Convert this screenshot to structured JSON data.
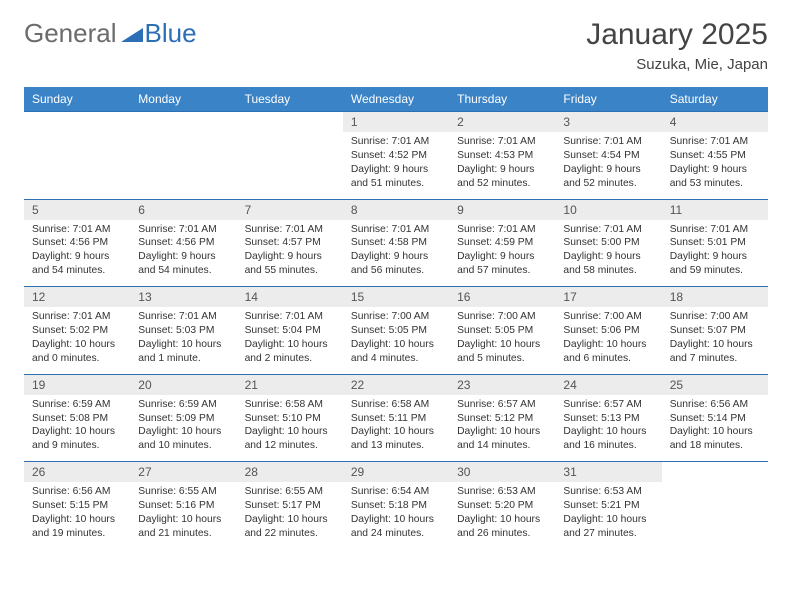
{
  "logo": {
    "general": "General",
    "blue": "Blue"
  },
  "title": "January 2025",
  "location": "Suzuka, Mie, Japan",
  "colors": {
    "header_bg": "#3a83c6",
    "header_text": "#ffffff",
    "row_border": "#2d6fb5",
    "daynum_bg": "#ececec",
    "logo_gray": "#6b6b6b",
    "logo_blue": "#2d6fb5"
  },
  "daysOfWeek": [
    "Sunday",
    "Monday",
    "Tuesday",
    "Wednesday",
    "Thursday",
    "Friday",
    "Saturday"
  ],
  "weeks": [
    [
      {
        "n": "",
        "sr": "",
        "ss": "",
        "dl": ""
      },
      {
        "n": "",
        "sr": "",
        "ss": "",
        "dl": ""
      },
      {
        "n": "",
        "sr": "",
        "ss": "",
        "dl": ""
      },
      {
        "n": "1",
        "sr": "Sunrise: 7:01 AM",
        "ss": "Sunset: 4:52 PM",
        "dl": "Daylight: 9 hours and 51 minutes."
      },
      {
        "n": "2",
        "sr": "Sunrise: 7:01 AM",
        "ss": "Sunset: 4:53 PM",
        "dl": "Daylight: 9 hours and 52 minutes."
      },
      {
        "n": "3",
        "sr": "Sunrise: 7:01 AM",
        "ss": "Sunset: 4:54 PM",
        "dl": "Daylight: 9 hours and 52 minutes."
      },
      {
        "n": "4",
        "sr": "Sunrise: 7:01 AM",
        "ss": "Sunset: 4:55 PM",
        "dl": "Daylight: 9 hours and 53 minutes."
      }
    ],
    [
      {
        "n": "5",
        "sr": "Sunrise: 7:01 AM",
        "ss": "Sunset: 4:56 PM",
        "dl": "Daylight: 9 hours and 54 minutes."
      },
      {
        "n": "6",
        "sr": "Sunrise: 7:01 AM",
        "ss": "Sunset: 4:56 PM",
        "dl": "Daylight: 9 hours and 54 minutes."
      },
      {
        "n": "7",
        "sr": "Sunrise: 7:01 AM",
        "ss": "Sunset: 4:57 PM",
        "dl": "Daylight: 9 hours and 55 minutes."
      },
      {
        "n": "8",
        "sr": "Sunrise: 7:01 AM",
        "ss": "Sunset: 4:58 PM",
        "dl": "Daylight: 9 hours and 56 minutes."
      },
      {
        "n": "9",
        "sr": "Sunrise: 7:01 AM",
        "ss": "Sunset: 4:59 PM",
        "dl": "Daylight: 9 hours and 57 minutes."
      },
      {
        "n": "10",
        "sr": "Sunrise: 7:01 AM",
        "ss": "Sunset: 5:00 PM",
        "dl": "Daylight: 9 hours and 58 minutes."
      },
      {
        "n": "11",
        "sr": "Sunrise: 7:01 AM",
        "ss": "Sunset: 5:01 PM",
        "dl": "Daylight: 9 hours and 59 minutes."
      }
    ],
    [
      {
        "n": "12",
        "sr": "Sunrise: 7:01 AM",
        "ss": "Sunset: 5:02 PM",
        "dl": "Daylight: 10 hours and 0 minutes."
      },
      {
        "n": "13",
        "sr": "Sunrise: 7:01 AM",
        "ss": "Sunset: 5:03 PM",
        "dl": "Daylight: 10 hours and 1 minute."
      },
      {
        "n": "14",
        "sr": "Sunrise: 7:01 AM",
        "ss": "Sunset: 5:04 PM",
        "dl": "Daylight: 10 hours and 2 minutes."
      },
      {
        "n": "15",
        "sr": "Sunrise: 7:00 AM",
        "ss": "Sunset: 5:05 PM",
        "dl": "Daylight: 10 hours and 4 minutes."
      },
      {
        "n": "16",
        "sr": "Sunrise: 7:00 AM",
        "ss": "Sunset: 5:05 PM",
        "dl": "Daylight: 10 hours and 5 minutes."
      },
      {
        "n": "17",
        "sr": "Sunrise: 7:00 AM",
        "ss": "Sunset: 5:06 PM",
        "dl": "Daylight: 10 hours and 6 minutes."
      },
      {
        "n": "18",
        "sr": "Sunrise: 7:00 AM",
        "ss": "Sunset: 5:07 PM",
        "dl": "Daylight: 10 hours and 7 minutes."
      }
    ],
    [
      {
        "n": "19",
        "sr": "Sunrise: 6:59 AM",
        "ss": "Sunset: 5:08 PM",
        "dl": "Daylight: 10 hours and 9 minutes."
      },
      {
        "n": "20",
        "sr": "Sunrise: 6:59 AM",
        "ss": "Sunset: 5:09 PM",
        "dl": "Daylight: 10 hours and 10 minutes."
      },
      {
        "n": "21",
        "sr": "Sunrise: 6:58 AM",
        "ss": "Sunset: 5:10 PM",
        "dl": "Daylight: 10 hours and 12 minutes."
      },
      {
        "n": "22",
        "sr": "Sunrise: 6:58 AM",
        "ss": "Sunset: 5:11 PM",
        "dl": "Daylight: 10 hours and 13 minutes."
      },
      {
        "n": "23",
        "sr": "Sunrise: 6:57 AM",
        "ss": "Sunset: 5:12 PM",
        "dl": "Daylight: 10 hours and 14 minutes."
      },
      {
        "n": "24",
        "sr": "Sunrise: 6:57 AM",
        "ss": "Sunset: 5:13 PM",
        "dl": "Daylight: 10 hours and 16 minutes."
      },
      {
        "n": "25",
        "sr": "Sunrise: 6:56 AM",
        "ss": "Sunset: 5:14 PM",
        "dl": "Daylight: 10 hours and 18 minutes."
      }
    ],
    [
      {
        "n": "26",
        "sr": "Sunrise: 6:56 AM",
        "ss": "Sunset: 5:15 PM",
        "dl": "Daylight: 10 hours and 19 minutes."
      },
      {
        "n": "27",
        "sr": "Sunrise: 6:55 AM",
        "ss": "Sunset: 5:16 PM",
        "dl": "Daylight: 10 hours and 21 minutes."
      },
      {
        "n": "28",
        "sr": "Sunrise: 6:55 AM",
        "ss": "Sunset: 5:17 PM",
        "dl": "Daylight: 10 hours and 22 minutes."
      },
      {
        "n": "29",
        "sr": "Sunrise: 6:54 AM",
        "ss": "Sunset: 5:18 PM",
        "dl": "Daylight: 10 hours and 24 minutes."
      },
      {
        "n": "30",
        "sr": "Sunrise: 6:53 AM",
        "ss": "Sunset: 5:20 PM",
        "dl": "Daylight: 10 hours and 26 minutes."
      },
      {
        "n": "31",
        "sr": "Sunrise: 6:53 AM",
        "ss": "Sunset: 5:21 PM",
        "dl": "Daylight: 10 hours and 27 minutes."
      },
      {
        "n": "",
        "sr": "",
        "ss": "",
        "dl": ""
      }
    ]
  ]
}
